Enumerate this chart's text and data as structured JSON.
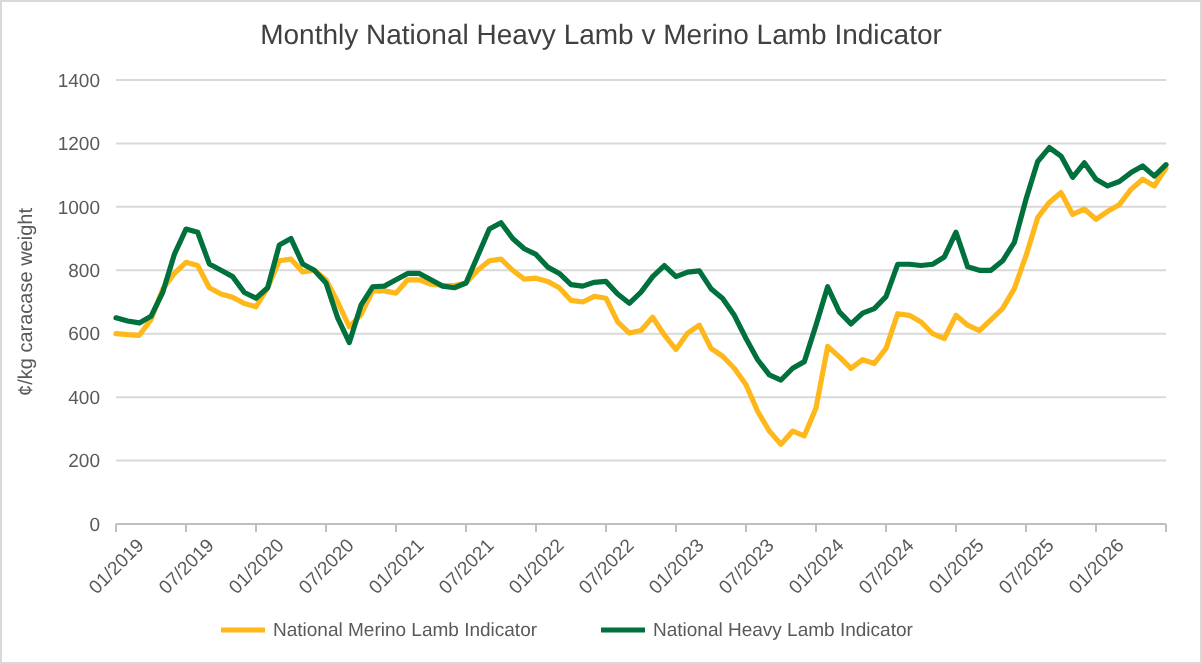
{
  "chart_data": {
    "type": "line",
    "title": "Monthly National Heavy Lamb v Merino Lamb Indicator",
    "ylabel": "¢/kg caracase weight",
    "categories": [
      "01/2019",
      null,
      null,
      null,
      null,
      null,
      "07/2019",
      null,
      null,
      null,
      null,
      null,
      "01/2020",
      null,
      null,
      null,
      null,
      null,
      "07/2020",
      null,
      null,
      null,
      null,
      null,
      "01/2021",
      null,
      null,
      null,
      null,
      null,
      "07/2021",
      null,
      null,
      null,
      null,
      null,
      "01/2022",
      null,
      null,
      null,
      null,
      null,
      "07/2022",
      null,
      null,
      null,
      null,
      null,
      "01/2023",
      null,
      null,
      null,
      null,
      null,
      "07/2023",
      null,
      null,
      null,
      null,
      null,
      "01/2024",
      null,
      null,
      null,
      null,
      null,
      "07/2024",
      null,
      null,
      null,
      null,
      null,
      "01/2025",
      null,
      null,
      null,
      null,
      null,
      "07/2025",
      null,
      null,
      null,
      null,
      null,
      "01/2026",
      null,
      null,
      null,
      null,
      null,
      null
    ],
    "series": [
      {
        "name": "National Merino Lamb Indicator",
        "color": "#ffb81c",
        "values": [
          600,
          597,
          595,
          645,
          740,
          790,
          825,
          815,
          745,
          725,
          715,
          695,
          685,
          745,
          830,
          835,
          795,
          800,
          770,
          700,
          622,
          660,
          735,
          735,
          728,
          770,
          770,
          756,
          752,
          752,
          760,
          800,
          830,
          835,
          800,
          772,
          775,
          765,
          745,
          705,
          700,
          718,
          712,
          637,
          602,
          610,
          652,
          596,
          550,
          602,
          627,
          554,
          529,
          491,
          439,
          355,
          293,
          251,
          293,
          278,
          366,
          560,
          527,
          491,
          518,
          506,
          554,
          663,
          658,
          637,
          600,
          585,
          658,
          627,
          610,
          644,
          680,
          742,
          846,
          966,
          1014,
          1045,
          976,
          993,
          961,
          986,
          1007,
          1055,
          1087,
          1066,
          1122
        ]
      },
      {
        "name": "National Heavy Lamb Indicator",
        "color": "#00703c",
        "values": [
          650,
          640,
          634,
          655,
          730,
          850,
          930,
          920,
          820,
          800,
          780,
          730,
          712,
          745,
          880,
          900,
          820,
          800,
          760,
          650,
          572,
          690,
          748,
          750,
          770,
          790,
          790,
          770,
          750,
          745,
          760,
          845,
          930,
          950,
          900,
          868,
          850,
          810,
          790,
          755,
          750,
          762,
          765,
          725,
          696,
          731,
          780,
          815,
          780,
          794,
          798,
          742,
          711,
          658,
          585,
          518,
          470,
          454,
          491,
          512,
          627,
          748,
          669,
          631,
          665,
          679,
          717,
          819,
          819,
          815,
          819,
          842,
          920,
          811,
          800,
          800,
          830,
          888,
          1024,
          1143,
          1187,
          1160,
          1093,
          1139,
          1087,
          1066,
          1080,
          1108,
          1129,
          1097,
          1133
        ]
      }
    ],
    "ylim": [
      0,
      1400
    ],
    "yticks": [
      0,
      200,
      400,
      600,
      800,
      1000,
      1200,
      1400
    ],
    "grid": "y",
    "legend": "bottom",
    "line_style": "solid"
  }
}
